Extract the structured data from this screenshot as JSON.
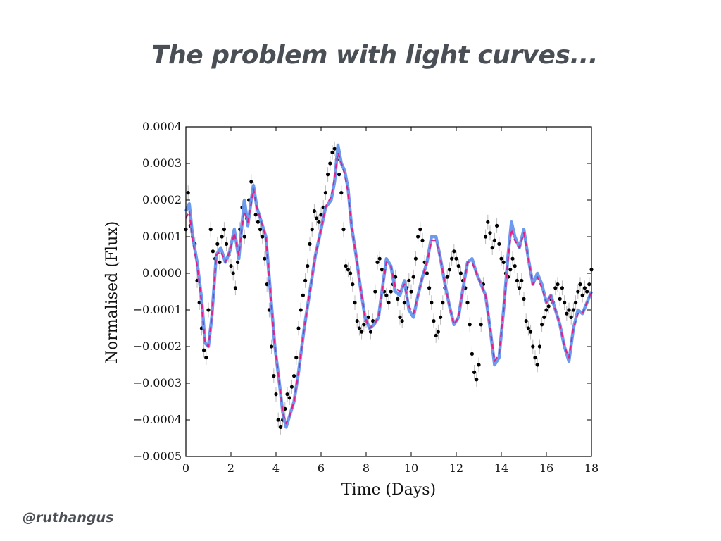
{
  "slide": {
    "title": "The problem with light curves...",
    "handle": "@ruthangus"
  },
  "chart_data": {
    "type": "scatter",
    "title": "",
    "xlabel": "Time (Days)",
    "ylabel": "Normalised (Flux)",
    "xlim": [
      0,
      18
    ],
    "ylim": [
      -0.0005,
      0.0004
    ],
    "xticks": [
      0,
      2,
      4,
      6,
      8,
      10,
      12,
      14,
      16,
      18
    ],
    "xtick_labels": [
      "0",
      "2",
      "4",
      "6",
      "8",
      "10",
      "12",
      "14",
      "16",
      "18"
    ],
    "yticks": [
      0.0004,
      0.0003,
      0.0002,
      0.0001,
      0.0,
      -0.0001,
      -0.0002,
      -0.0003,
      -0.0004,
      -0.0005
    ],
    "ytick_labels": [
      "0.0004",
      "0.0003",
      "0.0002",
      "0.0001",
      "0.0000",
      "−0.0001",
      "−0.0002",
      "−0.0003",
      "−0.0004",
      "−0.0005"
    ],
    "grid": false,
    "colors": {
      "points": "#000000",
      "errorbars": "#bbbbbb",
      "model_line": "#6495ed",
      "mean_line": "#e0218a"
    },
    "series": [
      {
        "name": "observations",
        "kind": "points with error bars",
        "error": 2e-05,
        "x": [
          0.0,
          0.1,
          0.2,
          0.3,
          0.4,
          0.5,
          0.6,
          0.7,
          0.8,
          0.9,
          1.0,
          1.1,
          1.2,
          1.3,
          1.4,
          1.5,
          1.6,
          1.7,
          1.8,
          1.9,
          2.0,
          2.1,
          2.2,
          2.3,
          2.4,
          2.5,
          2.6,
          2.7,
          2.8,
          2.9,
          3.0,
          3.1,
          3.2,
          3.3,
          3.4,
          3.5,
          3.6,
          3.7,
          3.8,
          3.9,
          4.0,
          4.1,
          4.2,
          4.3,
          4.4,
          4.5,
          4.6,
          4.7,
          4.8,
          4.9,
          5.0,
          5.1,
          5.2,
          5.3,
          5.4,
          5.5,
          5.6,
          5.7,
          5.8,
          5.9,
          6.0,
          6.1,
          6.2,
          6.3,
          6.4,
          6.5,
          6.6,
          6.7,
          6.8,
          6.9,
          7.0,
          7.1,
          7.2,
          7.3,
          7.4,
          7.5,
          7.6,
          7.7,
          7.8,
          7.9,
          8.0,
          8.1,
          8.2,
          8.3,
          8.4,
          8.5,
          8.6,
          8.7,
          8.8,
          8.9,
          9.0,
          9.1,
          9.2,
          9.3,
          9.4,
          9.5,
          9.6,
          9.7,
          9.8,
          9.9,
          10.0,
          10.1,
          10.2,
          10.3,
          10.4,
          10.5,
          10.6,
          10.7,
          10.8,
          10.9,
          11.0,
          11.1,
          11.2,
          11.3,
          11.4,
          11.5,
          11.6,
          11.7,
          11.8,
          11.9,
          12.0,
          12.1,
          12.2,
          12.3,
          12.4,
          12.5,
          12.6,
          12.7,
          12.8,
          12.9,
          13.0,
          13.1,
          13.2,
          13.3,
          13.4,
          13.5,
          13.6,
          13.7,
          13.8,
          13.9,
          14.0,
          14.1,
          14.2,
          14.3,
          14.4,
          14.5,
          14.6,
          14.7,
          14.8,
          14.9,
          15.0,
          15.1,
          15.2,
          15.3,
          15.4,
          15.5,
          15.6,
          15.7,
          15.8,
          15.9,
          16.0,
          16.1,
          16.2,
          16.3,
          16.4,
          16.5,
          16.6,
          16.7,
          16.8,
          16.9,
          17.0,
          17.1,
          17.2,
          17.3,
          17.4,
          17.5,
          17.6,
          17.7,
          17.8,
          17.9,
          18.0
        ],
        "y": [
          0.00012,
          0.00022,
          0.00013,
          0.0001,
          8e-05,
          -2e-05,
          -8e-05,
          -0.00015,
          -0.00021,
          -0.00023,
          -0.0001,
          0.00012,
          6e-05,
          4e-05,
          8e-05,
          3e-05,
          0.0001,
          0.00012,
          8e-05,
          5e-05,
          2e-05,
          0.0,
          -4e-05,
          3e-05,
          0.00012,
          0.00018,
          0.0001,
          0.00015,
          0.0002,
          0.00025,
          0.00023,
          0.00016,
          0.00014,
          0.00012,
          0.0001,
          4e-05,
          -3e-05,
          -0.0001,
          -0.0002,
          -0.00028,
          -0.00033,
          -0.0004,
          -0.00042,
          -0.0004,
          -0.00037,
          -0.00033,
          -0.00034,
          -0.00031,
          -0.00028,
          -0.00023,
          -0.00015,
          -0.0001,
          -6e-05,
          -2e-05,
          2e-05,
          8e-05,
          0.00012,
          0.00017,
          0.00015,
          0.00014,
          0.00016,
          0.00018,
          0.00022,
          0.00027,
          0.0003,
          0.00033,
          0.00034,
          0.00031,
          0.00027,
          0.00022,
          0.00012,
          2e-05,
          1e-05,
          0.0,
          -3e-05,
          -8e-05,
          -0.00013,
          -0.00015,
          -0.00016,
          -0.00014,
          -0.00013,
          -0.00012,
          -0.00016,
          -0.00013,
          -5e-05,
          3e-05,
          4e-05,
          1e-05,
          -5e-05,
          -6e-05,
          -8e-05,
          -5e-05,
          -3e-05,
          -1e-05,
          -7e-05,
          -0.00012,
          -0.00013,
          -8e-05,
          -4e-05,
          -2e-05,
          -5e-05,
          -1e-05,
          4e-05,
          0.0001,
          0.00012,
          9e-05,
          3e-05,
          0.0,
          -4e-05,
          -8e-05,
          -0.00013,
          -0.00017,
          -0.00016,
          -0.00012,
          -8e-05,
          -4e-05,
          -1e-05,
          1e-05,
          4e-05,
          6e-05,
          4e-05,
          2e-05,
          0.0,
          -2e-05,
          -4e-05,
          -8e-05,
          -0.00014,
          -0.00022,
          -0.00027,
          -0.00029,
          -0.00025,
          -0.00014,
          -3e-05,
          0.0001,
          0.00014,
          0.00011,
          7e-05,
          9e-05,
          0.00013,
          8e-05,
          4e-05,
          3e-05,
          0.0,
          -1e-05,
          1e-05,
          4e-05,
          2e-05,
          -2e-05,
          -4e-05,
          -2e-05,
          -7e-05,
          -0.00013,
          -0.00015,
          -0.00016,
          -0.0002,
          -0.00023,
          -0.00025,
          -0.0002,
          -0.00014,
          -0.00012,
          -0.0001,
          -9e-05,
          -7e-05,
          -8e-05,
          -4e-05,
          -3e-05,
          -7e-05,
          -4e-05,
          -8e-05,
          -0.00011,
          -0.0001,
          -0.00012,
          -0.0001,
          -8e-05,
          -5e-05,
          -3e-05,
          -6e-05,
          -4e-05,
          -5e-05,
          -3e-05,
          1e-05
        ]
      },
      {
        "name": "gp-model",
        "kind": "solid line",
        "x": [
          0.0,
          0.15,
          0.3,
          0.5,
          0.7,
          0.85,
          1.0,
          1.15,
          1.35,
          1.55,
          1.75,
          1.95,
          2.15,
          2.35,
          2.5,
          2.6,
          2.75,
          2.9,
          3.0,
          3.15,
          3.35,
          3.55,
          3.75,
          3.95,
          4.15,
          4.3,
          4.45,
          4.6,
          4.8,
          5.0,
          5.25,
          5.5,
          5.75,
          6.0,
          6.2,
          6.45,
          6.6,
          6.75,
          6.9,
          7.05,
          7.2,
          7.35,
          7.55,
          7.75,
          7.95,
          8.15,
          8.35,
          8.55,
          8.7,
          8.9,
          9.1,
          9.3,
          9.5,
          9.7,
          9.9,
          10.1,
          10.3,
          10.5,
          10.7,
          10.9,
          11.1,
          11.3,
          11.5,
          11.7,
          11.9,
          12.1,
          12.3,
          12.5,
          12.7,
          12.9,
          13.1,
          13.3,
          13.5,
          13.7,
          13.9,
          14.1,
          14.3,
          14.45,
          14.6,
          14.8,
          15.0,
          15.2,
          15.4,
          15.6,
          15.8,
          16.0,
          16.2,
          16.4,
          16.6,
          16.8,
          17.0,
          17.2,
          17.4,
          17.6,
          17.8,
          18.0
        ],
        "y": [
          0.00017,
          0.00019,
          0.0001,
          3e-05,
          -7e-05,
          -0.00019,
          -0.0002,
          -0.00012,
          5e-05,
          7e-05,
          3e-05,
          6e-05,
          0.00012,
          4e-05,
          0.00014,
          0.0002,
          0.00013,
          0.0002,
          0.00024,
          0.00018,
          0.00014,
          0.0001,
          -5e-05,
          -0.0002,
          -0.0003,
          -0.00038,
          -0.00042,
          -0.00039,
          -0.00035,
          -0.00027,
          -0.00015,
          -5e-05,
          5e-05,
          0.00012,
          0.00018,
          0.0002,
          0.00025,
          0.00035,
          0.0003,
          0.00028,
          0.00023,
          0.00013,
          5e-05,
          -4e-05,
          -0.00012,
          -0.00015,
          -0.00014,
          -0.00012,
          -5e-05,
          4e-05,
          2e-05,
          -5e-05,
          -6e-05,
          -2e-05,
          -0.0001,
          -0.00012,
          -6e-05,
          -1e-05,
          3e-05,
          0.0001,
          0.0001,
          4e-05,
          -3e-05,
          -9e-05,
          -0.00014,
          -0.00012,
          -4e-05,
          3e-05,
          4e-05,
          0.0,
          -3e-05,
          -6e-05,
          -0.00015,
          -0.00025,
          -0.00023,
          -0.0001,
          5e-05,
          0.00014,
          0.0001,
          7e-05,
          0.00012,
          4e-05,
          -3e-05,
          0.0,
          -3e-05,
          -8e-05,
          -6e-05,
          -0.0001,
          -0.00014,
          -0.0002,
          -0.00024,
          -0.00015,
          -0.0001,
          -0.00011,
          -8e-05,
          -5e-05
        ]
      },
      {
        "name": "gp-mean",
        "kind": "dashed line",
        "x": [
          0.0,
          0.15,
          0.3,
          0.5,
          0.7,
          0.85,
          1.0,
          1.15,
          1.35,
          1.55,
          1.75,
          1.95,
          2.15,
          2.35,
          2.5,
          2.6,
          2.75,
          2.9,
          3.0,
          3.15,
          3.35,
          3.55,
          3.75,
          3.95,
          4.15,
          4.3,
          4.45,
          4.6,
          4.8,
          5.0,
          5.25,
          5.5,
          5.75,
          6.0,
          6.2,
          6.45,
          6.6,
          6.75,
          6.9,
          7.05,
          7.2,
          7.35,
          7.55,
          7.75,
          7.95,
          8.15,
          8.35,
          8.55,
          8.7,
          8.9,
          9.1,
          9.3,
          9.5,
          9.7,
          9.9,
          10.1,
          10.3,
          10.5,
          10.7,
          10.9,
          11.1,
          11.3,
          11.5,
          11.7,
          11.9,
          12.1,
          12.3,
          12.5,
          12.7,
          12.9,
          13.1,
          13.3,
          13.5,
          13.7,
          13.9,
          14.1,
          14.3,
          14.45,
          14.6,
          14.8,
          15.0,
          15.2,
          15.4,
          15.6,
          15.8,
          16.0,
          16.2,
          16.4,
          16.6,
          16.8,
          17.0,
          17.2,
          17.4,
          17.6,
          17.8,
          18.0
        ],
        "y": [
          0.00015,
          0.00017,
          9e-05,
          2e-05,
          -8e-05,
          -0.00019,
          -0.0002,
          -0.00012,
          5e-05,
          6e-05,
          3e-05,
          6e-05,
          0.00011,
          5e-05,
          0.00013,
          0.00017,
          0.00014,
          0.00019,
          0.00023,
          0.00018,
          0.00014,
          0.0001,
          -5e-05,
          -0.0002,
          -0.0003,
          -0.00038,
          -0.00041,
          -0.00039,
          -0.00035,
          -0.00027,
          -0.00015,
          -5e-05,
          5e-05,
          0.00012,
          0.00018,
          0.00021,
          0.00026,
          0.00033,
          0.0003,
          0.00027,
          0.00022,
          0.00013,
          5e-05,
          -4e-05,
          -0.00012,
          -0.00015,
          -0.00014,
          -0.00012,
          -5e-05,
          3e-05,
          2e-05,
          -4e-05,
          -5e-05,
          -3e-05,
          -9e-05,
          -0.00011,
          -6e-05,
          -1e-05,
          3e-05,
          9e-05,
          9e-05,
          4e-05,
          -3e-05,
          -9e-05,
          -0.00014,
          -0.00012,
          -4e-05,
          3e-05,
          3e-05,
          0.0,
          -3e-05,
          -6e-05,
          -0.00015,
          -0.00024,
          -0.00022,
          -0.0001,
          4e-05,
          0.00012,
          9e-05,
          7e-05,
          0.00011,
          4e-05,
          -3e-05,
          -1e-05,
          -4e-05,
          -8e-05,
          -6e-05,
          -0.0001,
          -0.00014,
          -0.0002,
          -0.00023,
          -0.00015,
          -0.00011,
          -0.00011,
          -8e-05,
          -5e-05
        ]
      }
    ]
  }
}
